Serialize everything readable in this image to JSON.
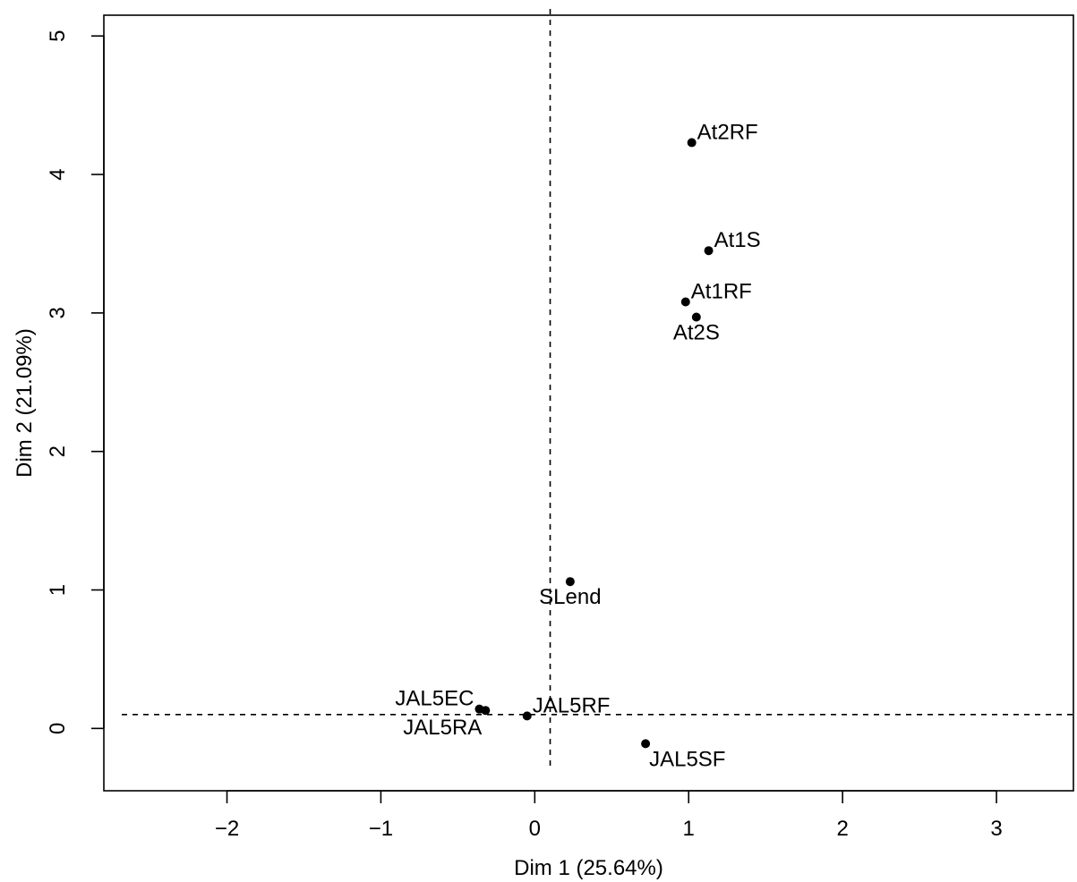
{
  "chart_data": {
    "type": "scatter",
    "title": "",
    "xlabel": "Dim 1 (25.64%)",
    "ylabel": "Dim 2 (21.09%)",
    "xlim": [
      -2.8,
      3.5
    ],
    "ylim": [
      -0.45,
      5.15
    ],
    "x_ticks": [
      -2,
      -1,
      0,
      1,
      2,
      3
    ],
    "y_ticks": [
      0,
      1,
      2,
      3,
      4,
      5
    ],
    "x_tick_labels": [
      "−2",
      "−1",
      "0",
      "1",
      "2",
      "3"
    ],
    "y_tick_labels": [
      "0",
      "1",
      "2",
      "3",
      "4",
      "5"
    ],
    "reference_lines": {
      "vertical_x": 0.1,
      "horizontal_y": 0.1
    },
    "grid": false,
    "points": [
      {
        "label": "At2RF",
        "x": 1.02,
        "y": 4.23,
        "label_pos": "top-right"
      },
      {
        "label": "At1S",
        "x": 1.13,
        "y": 3.45,
        "label_pos": "top-right"
      },
      {
        "label": "At1RF",
        "x": 0.98,
        "y": 3.08,
        "label_pos": "top-right"
      },
      {
        "label": "At2S",
        "x": 1.05,
        "y": 2.97,
        "label_pos": "below"
      },
      {
        "label": "SLend",
        "x": 0.23,
        "y": 1.06,
        "label_pos": "below"
      },
      {
        "label": "JAL5EC",
        "x": -0.36,
        "y": 0.14,
        "label_pos": "top-left"
      },
      {
        "label": "JAL5RA",
        "x": -0.32,
        "y": 0.13,
        "label_pos": "below-left"
      },
      {
        "label": "JAL5RF",
        "x": -0.05,
        "y": 0.09,
        "label_pos": "top-right"
      },
      {
        "label": "JAL5SF",
        "x": 0.72,
        "y": -0.11,
        "label_pos": "below-right"
      }
    ]
  }
}
